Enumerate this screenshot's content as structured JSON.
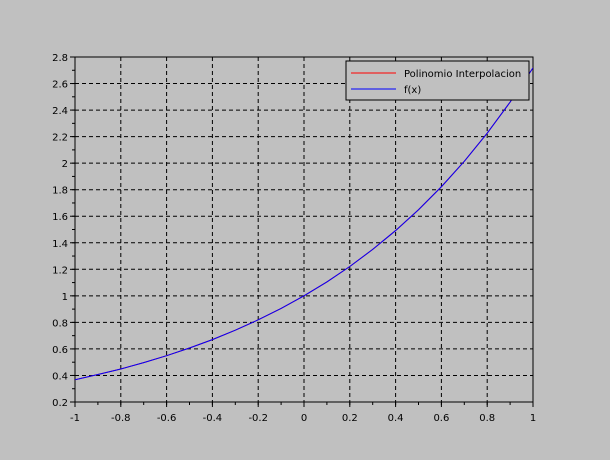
{
  "chart_data": {
    "type": "line",
    "title": "",
    "xlabel": "",
    "ylabel": "",
    "xlim": [
      -1,
      1
    ],
    "ylim": [
      0.2,
      2.8
    ],
    "xticks": [
      -1,
      -0.8,
      -0.6,
      -0.4,
      -0.2,
      0,
      0.2,
      0.4,
      0.6,
      0.8,
      1
    ],
    "xtick_labels": [
      "-1",
      "-0.8",
      "-0.6",
      "-0.4",
      "-0.2",
      "0",
      "0.2",
      "0.4",
      "0.6",
      "0.8",
      "1"
    ],
    "yticks": [
      0.2,
      0.4,
      0.6,
      0.8,
      1,
      1.2,
      1.4,
      1.6,
      1.8,
      2,
      2.2,
      2.4,
      2.6,
      2.8
    ],
    "ytick_labels": [
      "0.2",
      "0.4",
      "0.6",
      "0.8",
      "1",
      "1.2",
      "1.4",
      "1.6",
      "1.8",
      "2",
      "2.2",
      "2.4",
      "2.6",
      "2.8"
    ],
    "grid": true,
    "legend_position": "top-right",
    "x": [
      -1,
      -0.9,
      -0.8,
      -0.7,
      -0.6,
      -0.5,
      -0.4,
      -0.3,
      -0.2,
      -0.1,
      0,
      0.1,
      0.2,
      0.3,
      0.4,
      0.5,
      0.6,
      0.7,
      0.8,
      0.9,
      1
    ],
    "series": [
      {
        "name": "Polinomio Interpolacion",
        "color": "#ff0000",
        "values": [
          0.368,
          0.407,
          0.449,
          0.497,
          0.549,
          0.607,
          0.67,
          0.741,
          0.819,
          0.905,
          1.0,
          1.105,
          1.221,
          1.35,
          1.492,
          1.649,
          1.822,
          2.014,
          2.226,
          2.46,
          2.718
        ]
      },
      {
        "name": "f(x)",
        "color": "#0000ff",
        "values": [
          0.368,
          0.407,
          0.449,
          0.497,
          0.549,
          0.607,
          0.67,
          0.741,
          0.819,
          0.905,
          1.0,
          1.105,
          1.221,
          1.35,
          1.492,
          1.649,
          1.822,
          2.014,
          2.226,
          2.46,
          2.718
        ]
      }
    ]
  }
}
